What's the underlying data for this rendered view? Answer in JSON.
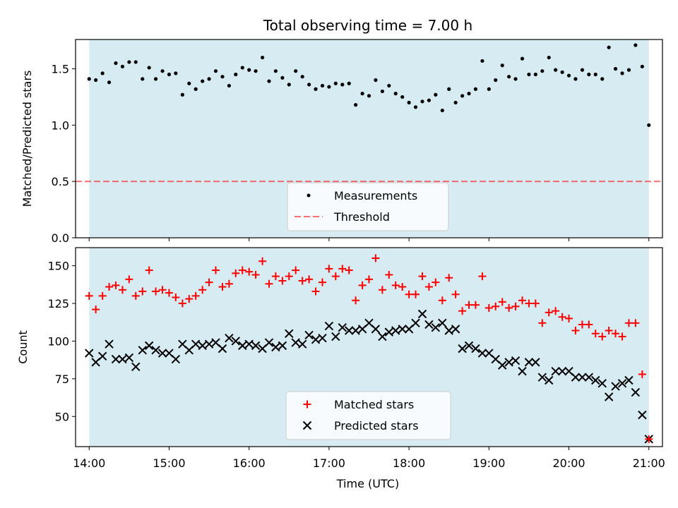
{
  "title": "Total observing time = 7.00 h",
  "xlabel": "Time (UTC)",
  "x_tick_labels": [
    "14:00",
    "15:00",
    "16:00",
    "17:00",
    "18:00",
    "19:00",
    "20:00",
    "21:00"
  ],
  "colors": {
    "shade": "#add8e6",
    "matched": "#ff0000",
    "predicted": "#000000",
    "threshold": "#ff0000",
    "measurement": "#000000"
  },
  "chart_data": [
    {
      "type": "scatter",
      "ylabel": "Matched/Predicted stars",
      "xlim": [
        13.83,
        21.17
      ],
      "ylim": [
        0,
        1.76
      ],
      "y_ticks": [
        0.0,
        0.5,
        1.0,
        1.5
      ],
      "y_tick_labels": [
        "0.0",
        "0.5",
        "1.0",
        "1.5"
      ],
      "shaded_x": [
        14.0,
        21.0
      ],
      "legend": {
        "placement": "lower-center",
        "entries": [
          "Measurements",
          "Threshold"
        ]
      },
      "threshold": {
        "name": "Threshold",
        "y": 0.5
      },
      "series": [
        {
          "name": "Measurements",
          "x": [
            14.0,
            14.083,
            14.167,
            14.25,
            14.333,
            14.417,
            14.5,
            14.583,
            14.667,
            14.75,
            14.833,
            14.917,
            15.0,
            15.083,
            15.167,
            15.25,
            15.333,
            15.417,
            15.5,
            15.583,
            15.667,
            15.75,
            15.833,
            15.917,
            16.0,
            16.083,
            16.167,
            16.25,
            16.333,
            16.417,
            16.5,
            16.583,
            16.667,
            16.75,
            16.833,
            16.917,
            17.0,
            17.083,
            17.167,
            17.25,
            17.333,
            17.417,
            17.5,
            17.583,
            17.667,
            17.75,
            17.833,
            17.917,
            18.0,
            18.083,
            18.167,
            18.25,
            18.333,
            18.417,
            18.5,
            18.583,
            18.667,
            18.75,
            18.833,
            18.917,
            19.0,
            19.083,
            19.167,
            19.25,
            19.333,
            19.417,
            19.5,
            19.583,
            19.667,
            19.75,
            19.833,
            19.917,
            20.0,
            20.083,
            20.167,
            20.25,
            20.333,
            20.417,
            20.5,
            20.583,
            20.667,
            20.75,
            20.833,
            20.917,
            21.0
          ],
          "y": [
            1.41,
            1.4,
            1.46,
            1.38,
            1.55,
            1.52,
            1.56,
            1.56,
            1.41,
            1.51,
            1.41,
            1.48,
            1.45,
            1.46,
            1.27,
            1.37,
            1.32,
            1.39,
            1.41,
            1.48,
            1.43,
            1.35,
            1.45,
            1.51,
            1.49,
            1.48,
            1.6,
            1.39,
            1.48,
            1.42,
            1.36,
            1.48,
            1.43,
            1.36,
            1.32,
            1.35,
            1.34,
            1.37,
            1.36,
            1.37,
            1.18,
            1.28,
            1.26,
            1.4,
            1.3,
            1.35,
            1.28,
            1.25,
            1.2,
            1.16,
            1.21,
            1.22,
            1.27,
            1.13,
            1.32,
            1.2,
            1.26,
            1.28,
            1.32,
            1.57,
            1.32,
            1.4,
            1.53,
            1.43,
            1.41,
            1.59,
            1.45,
            1.45,
            1.48,
            1.6,
            1.49,
            1.47,
            1.44,
            1.41,
            1.49,
            1.45,
            1.45,
            1.41,
            1.69,
            1.5,
            1.46,
            1.49,
            1.71,
            1.52,
            1.0
          ]
        }
      ]
    },
    {
      "type": "scatter",
      "ylabel": "Count",
      "xlim": [
        13.83,
        21.17
      ],
      "ylim": [
        30,
        162
      ],
      "y_ticks": [
        50,
        75,
        100,
        125,
        150
      ],
      "y_tick_labels": [
        "50",
        "75",
        "100",
        "125",
        "150"
      ],
      "shaded_x": [
        14.0,
        21.0
      ],
      "legend": {
        "placement": "lower-center",
        "entries": [
          "Matched stars",
          "Predicted stars"
        ]
      },
      "x": [
        14.0,
        14.083,
        14.167,
        14.25,
        14.333,
        14.417,
        14.5,
        14.583,
        14.667,
        14.75,
        14.833,
        14.917,
        15.0,
        15.083,
        15.167,
        15.25,
        15.333,
        15.417,
        15.5,
        15.583,
        15.667,
        15.75,
        15.833,
        15.917,
        16.0,
        16.083,
        16.167,
        16.25,
        16.333,
        16.417,
        16.5,
        16.583,
        16.667,
        16.75,
        16.833,
        16.917,
        17.0,
        17.083,
        17.167,
        17.25,
        17.333,
        17.417,
        17.5,
        17.583,
        17.667,
        17.75,
        17.833,
        17.917,
        18.0,
        18.083,
        18.167,
        18.25,
        18.333,
        18.417,
        18.5,
        18.583,
        18.667,
        18.75,
        18.833,
        18.917,
        19.0,
        19.083,
        19.167,
        19.25,
        19.333,
        19.417,
        19.5,
        19.583,
        19.667,
        19.75,
        19.833,
        19.917,
        20.0,
        20.083,
        20.167,
        20.25,
        20.333,
        20.417,
        20.5,
        20.583,
        20.667,
        20.75,
        20.833,
        20.917,
        21.0
      ],
      "series": [
        {
          "name": "Matched stars",
          "marker": "plus",
          "y": [
            130,
            121,
            130,
            136,
            137,
            134,
            141,
            130,
            133,
            147,
            133,
            134,
            132,
            129,
            125,
            128,
            130,
            134,
            139,
            147,
            136,
            138,
            145,
            147,
            146,
            144,
            153,
            138,
            143,
            140,
            143,
            147,
            140,
            141,
            133,
            139,
            148,
            143,
            148,
            147,
            127,
            137,
            141,
            155,
            134,
            144,
            137,
            136,
            131,
            131,
            143,
            136,
            139,
            127,
            142,
            131,
            120,
            124,
            124,
            143,
            122,
            123,
            126,
            122,
            123,
            127,
            125,
            125,
            112,
            119,
            120,
            116,
            115,
            107,
            111,
            111,
            105,
            103,
            107,
            105,
            103,
            112,
            112,
            78,
            35
          ]
        },
        {
          "name": "Predicted stars",
          "marker": "x",
          "y": [
            92,
            86,
            90,
            98,
            88,
            88,
            89,
            83,
            94,
            97,
            94,
            92,
            92,
            88,
            98,
            94,
            98,
            97,
            98,
            99,
            95,
            102,
            100,
            97,
            98,
            97,
            95,
            99,
            96,
            97,
            105,
            99,
            98,
            104,
            101,
            102,
            110,
            103,
            109,
            107,
            107,
            108,
            112,
            108,
            103,
            106,
            107,
            108,
            108,
            112,
            118,
            111,
            109,
            112,
            107,
            108,
            95,
            97,
            95,
            92,
            92,
            88,
            84,
            86,
            87,
            80,
            86,
            86,
            76,
            74,
            80,
            80,
            80,
            76,
            76,
            76,
            74,
            72,
            63,
            70,
            72,
            74,
            66,
            51,
            35
          ]
        }
      ]
    }
  ]
}
